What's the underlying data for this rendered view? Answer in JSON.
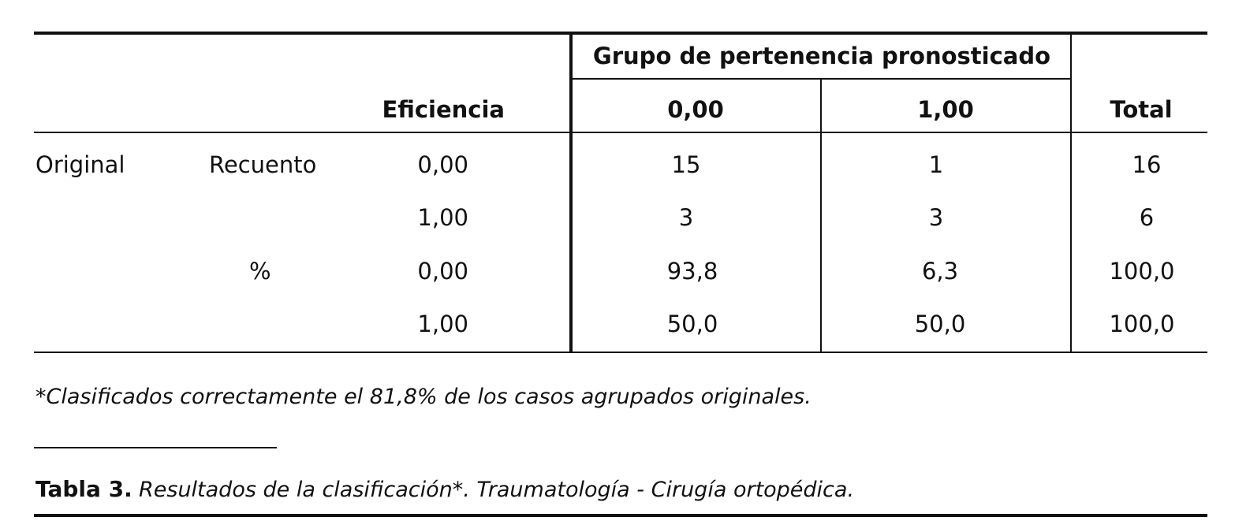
{
  "table": {
    "group_header": "Grupo de pertenencia pronosticado",
    "columns": {
      "eficiencia": "Eficiencia",
      "col0": "0,00",
      "col1": "1,00",
      "total": "Total"
    },
    "row_group_label": "Original",
    "rows": [
      {
        "measure": "Recuento",
        "eficiencia": "0,00",
        "col0": "15",
        "col1": "1",
        "total": "16"
      },
      {
        "measure": "",
        "eficiencia": "1,00",
        "col0": "3",
        "col1": "3",
        "total": "6"
      },
      {
        "measure": "%",
        "eficiencia": "0,00",
        "col0": "93,8",
        "col1": "6,3",
        "total": "100,0"
      },
      {
        "measure": "",
        "eficiencia": "1,00",
        "col0": "50,0",
        "col1": "50,0",
        "total": "100,0"
      }
    ]
  },
  "footnote": "*Clasificados correctamente el 81,8% de los casos agrupados originales.",
  "caption": {
    "label": "Tabla 3.",
    "text": "Resultados de la clasificación*. Traumatología - Cirugía ortopédica."
  }
}
